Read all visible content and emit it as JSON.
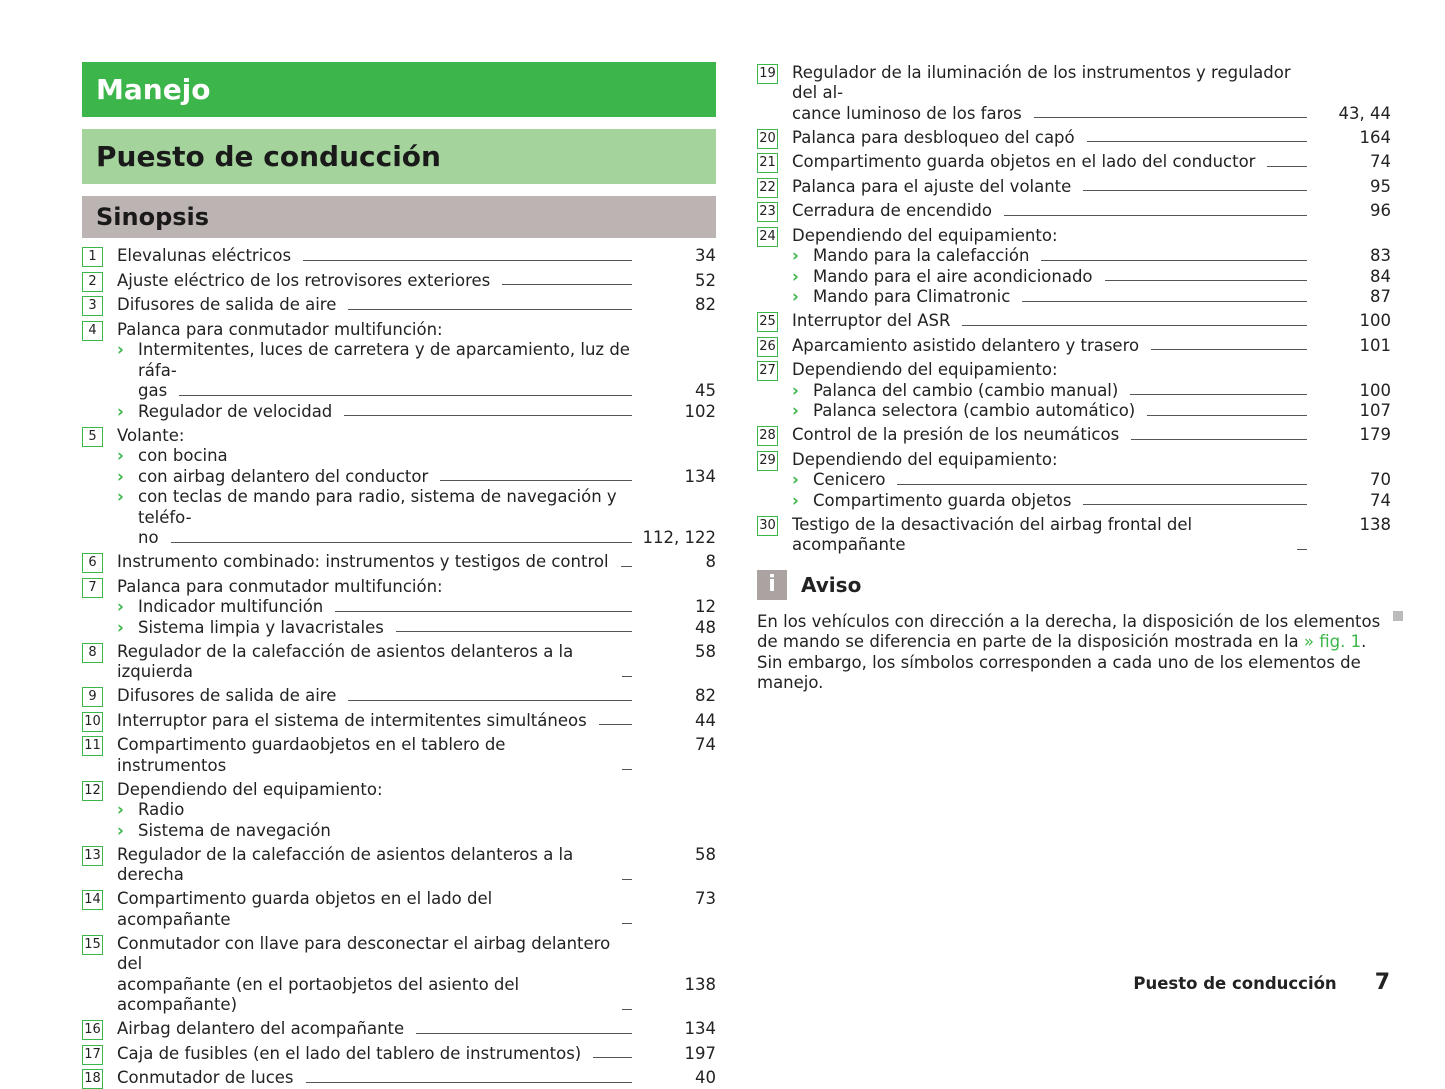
{
  "header": {
    "chapter": "Manejo",
    "section": "Puesto de conducción",
    "subsection": "Sinopsis"
  },
  "left_items": [
    {
      "num": "1",
      "lines": [
        "Elevalunas eléctricos"
      ],
      "page": "34"
    },
    {
      "num": "2",
      "lines": [
        "Ajuste eléctrico de los retrovisores exteriores"
      ],
      "page": "52"
    },
    {
      "num": "3",
      "lines": [
        "Difusores de salida de aire"
      ],
      "page": "82"
    },
    {
      "num": "4",
      "lines": [
        "Palanca para conmutador multifunción:"
      ],
      "subs": [
        {
          "lines": [
            "Intermitentes, luces de carretera y de aparcamiento, luz de ráfa-",
            "gas"
          ],
          "page": "45"
        },
        {
          "lines": [
            "Regulador de velocidad"
          ],
          "page": "102"
        }
      ]
    },
    {
      "num": "5",
      "lines": [
        "Volante:"
      ],
      "subs": [
        {
          "lines": [
            "con bocina"
          ]
        },
        {
          "lines": [
            "con airbag delantero del conductor"
          ],
          "page": "134"
        },
        {
          "lines": [
            "con teclas de mando para radio, sistema de navegación y teléfo-",
            "no"
          ],
          "page": "112, 122"
        }
      ]
    },
    {
      "num": "6",
      "lines": [
        "Instrumento combinado: instrumentos y testigos de control"
      ],
      "page": "8"
    },
    {
      "num": "7",
      "lines": [
        "Palanca para conmutador multifunción:"
      ],
      "subs": [
        {
          "lines": [
            "Indicador multifunción"
          ],
          "page": "12"
        },
        {
          "lines": [
            "Sistema limpia y lavacristales"
          ],
          "page": "48"
        }
      ]
    },
    {
      "num": "8",
      "lines": [
        "Regulador de la calefacción de asientos delanteros a la izquierda"
      ],
      "page": "58"
    },
    {
      "num": "9",
      "lines": [
        "Difusores de salida de aire"
      ],
      "page": "82"
    },
    {
      "num": "10",
      "lines": [
        "Interruptor para el sistema de intermitentes simultáneos"
      ],
      "page": "44"
    },
    {
      "num": "11",
      "lines": [
        "Compartimento guardaobjetos en el tablero de instrumentos"
      ],
      "page": "74"
    },
    {
      "num": "12",
      "lines": [
        "Dependiendo del equipamiento:"
      ],
      "subs": [
        {
          "lines": [
            "Radio"
          ]
        },
        {
          "lines": [
            "Sistema de navegación"
          ]
        }
      ]
    },
    {
      "num": "13",
      "lines": [
        "Regulador de la calefacción de asientos delanteros a la derecha"
      ],
      "page": "58"
    },
    {
      "num": "14",
      "lines": [
        "Compartimento guarda objetos en el lado del acompañante"
      ],
      "page": "73"
    },
    {
      "num": "15",
      "lines": [
        "Conmutador con llave para desconectar el airbag delantero del",
        "acompañante (en el portaobjetos del asiento del acompañante)"
      ],
      "page": "138"
    },
    {
      "num": "16",
      "lines": [
        "Airbag delantero del acompañante"
      ],
      "page": "134"
    },
    {
      "num": "17",
      "lines": [
        "Caja de fusibles (en el lado del tablero de instrumentos)"
      ],
      "page": "197"
    },
    {
      "num": "18",
      "lines": [
        "Conmutador de luces"
      ],
      "page": "40"
    }
  ],
  "right_items": [
    {
      "num": "19",
      "lines": [
        "Regulador de la iluminación de los instrumentos y regulador del al-",
        "cance luminoso de los faros"
      ],
      "page": "43, 44"
    },
    {
      "num": "20",
      "lines": [
        "Palanca para desbloqueo del capó"
      ],
      "page": "164"
    },
    {
      "num": "21",
      "lines": [
        "Compartimento guarda objetos en el lado del conductor"
      ],
      "page": "74"
    },
    {
      "num": "22",
      "lines": [
        "Palanca para el ajuste del volante"
      ],
      "page": "95"
    },
    {
      "num": "23",
      "lines": [
        "Cerradura de encendido"
      ],
      "page": "96"
    },
    {
      "num": "24",
      "lines": [
        "Dependiendo del equipamiento:"
      ],
      "subs": [
        {
          "lines": [
            "Mando para la calefacción"
          ],
          "page": "83"
        },
        {
          "lines": [
            "Mando para el aire acondicionado"
          ],
          "page": "84"
        },
        {
          "lines": [
            "Mando para Climatronic"
          ],
          "page": "87"
        }
      ]
    },
    {
      "num": "25",
      "lines": [
        "Interruptor del ASR"
      ],
      "page": "100"
    },
    {
      "num": "26",
      "lines": [
        "Aparcamiento asistido delantero y trasero"
      ],
      "page": "101"
    },
    {
      "num": "27",
      "lines": [
        "Dependiendo del equipamiento:"
      ],
      "subs": [
        {
          "lines": [
            "Palanca del cambio (cambio manual)"
          ],
          "page": "100"
        },
        {
          "lines": [
            "Palanca selectora (cambio automático)"
          ],
          "page": "107"
        }
      ]
    },
    {
      "num": "28",
      "lines": [
        "Control de la presión de los neumáticos"
      ],
      "page": "179"
    },
    {
      "num": "29",
      "lines": [
        "Dependiendo del equipamiento:"
      ],
      "subs": [
        {
          "lines": [
            "Cenicero"
          ],
          "page": "70"
        },
        {
          "lines": [
            "Compartimento guarda objetos"
          ],
          "page": "74"
        }
      ]
    },
    {
      "num": "30",
      "lines": [
        "Testigo de la desactivación del airbag frontal del acompañante"
      ],
      "page": "138"
    }
  ],
  "notice": {
    "icon": "info-icon",
    "icon_glyph": "i",
    "title": "Aviso",
    "text_before": "En los vehículos con dirección a la derecha, la disposición de los elementos de mando se diferencia en parte de la disposición mostrada en la ",
    "link": "» fig. 1",
    "text_after": ". Sin embargo, los símbolos corresponden a cada uno de los elementos de manejo."
  },
  "footer": {
    "section": "Puesto de conducción",
    "page": "7"
  },
  "colors": {
    "green": "#3cb54a",
    "light_green": "#a4d49b",
    "grey": "#bbb4b2"
  }
}
